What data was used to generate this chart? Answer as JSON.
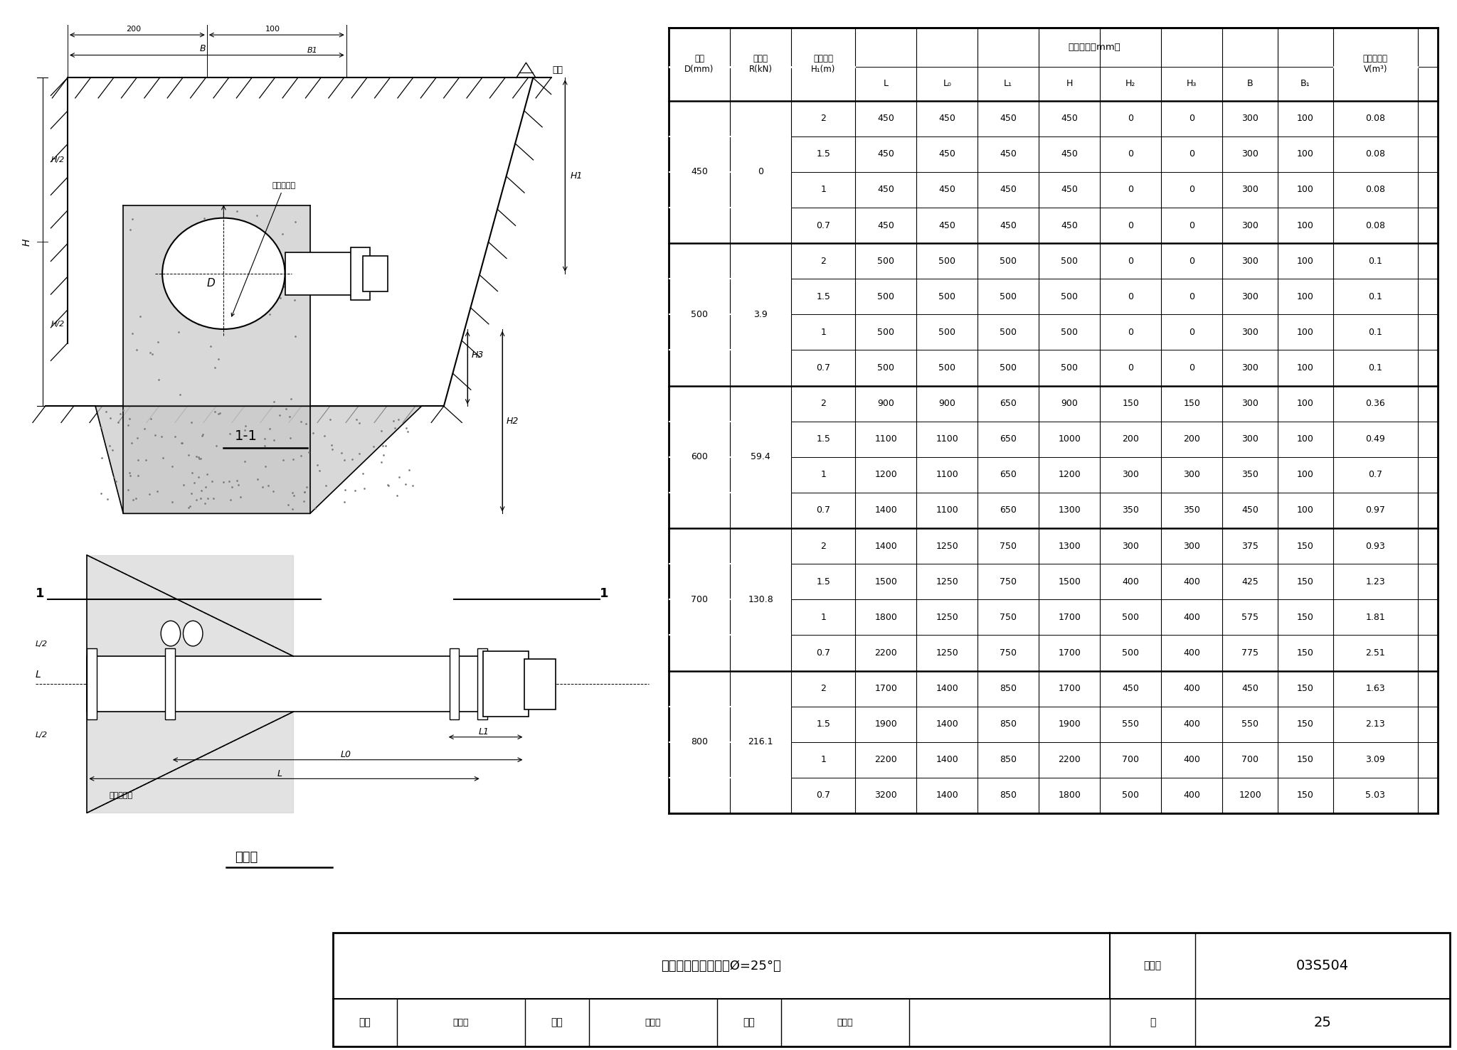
{
  "title": "水平三通管支墩图（Ø=25°）",
  "fig_num": "03S504",
  "page": "25",
  "table_data": [
    [
      "450",
      "0",
      "2",
      "450",
      "450",
      "450",
      "450",
      "0",
      "0",
      "300",
      "100",
      "0.08"
    ],
    [
      "",
      "",
      "1.5",
      "450",
      "450",
      "450",
      "450",
      "0",
      "0",
      "300",
      "100",
      "0.08"
    ],
    [
      "",
      "",
      "1",
      "450",
      "450",
      "450",
      "450",
      "0",
      "0",
      "300",
      "100",
      "0.08"
    ],
    [
      "",
      "",
      "0.7",
      "450",
      "450",
      "450",
      "450",
      "0",
      "0",
      "300",
      "100",
      "0.08"
    ],
    [
      "500",
      "3.9",
      "2",
      "500",
      "500",
      "500",
      "500",
      "0",
      "0",
      "300",
      "100",
      "0.1"
    ],
    [
      "",
      "",
      "1.5",
      "500",
      "500",
      "500",
      "500",
      "0",
      "0",
      "300",
      "100",
      "0.1"
    ],
    [
      "",
      "",
      "1",
      "500",
      "500",
      "500",
      "500",
      "0",
      "0",
      "300",
      "100",
      "0.1"
    ],
    [
      "",
      "",
      "0.7",
      "500",
      "500",
      "500",
      "500",
      "0",
      "0",
      "300",
      "100",
      "0.1"
    ],
    [
      "600",
      "59.4",
      "2",
      "900",
      "900",
      "650",
      "900",
      "150",
      "150",
      "300",
      "100",
      "0.36"
    ],
    [
      "",
      "",
      "1.5",
      "1100",
      "1100",
      "650",
      "1000",
      "200",
      "200",
      "300",
      "100",
      "0.49"
    ],
    [
      "",
      "",
      "1",
      "1200",
      "1100",
      "650",
      "1200",
      "300",
      "300",
      "350",
      "100",
      "0.7"
    ],
    [
      "",
      "",
      "0.7",
      "1400",
      "1100",
      "650",
      "1300",
      "350",
      "350",
      "450",
      "100",
      "0.97"
    ],
    [
      "700",
      "130.8",
      "2",
      "1400",
      "1250",
      "750",
      "1300",
      "300",
      "300",
      "375",
      "150",
      "0.93"
    ],
    [
      "",
      "",
      "1.5",
      "1500",
      "1250",
      "750",
      "1500",
      "400",
      "400",
      "425",
      "150",
      "1.23"
    ],
    [
      "",
      "",
      "1",
      "1800",
      "1250",
      "750",
      "1700",
      "500",
      "400",
      "575",
      "150",
      "1.81"
    ],
    [
      "",
      "",
      "0.7",
      "2200",
      "1250",
      "750",
      "1700",
      "500",
      "400",
      "775",
      "150",
      "2.51"
    ],
    [
      "800",
      "216.1",
      "2",
      "1700",
      "1400",
      "850",
      "1700",
      "450",
      "400",
      "450",
      "150",
      "1.63"
    ],
    [
      "",
      "",
      "1.5",
      "1900",
      "1400",
      "850",
      "1900",
      "550",
      "400",
      "550",
      "150",
      "2.13"
    ],
    [
      "",
      "",
      "1",
      "2200",
      "1400",
      "850",
      "2200",
      "700",
      "400",
      "700",
      "150",
      "3.09"
    ],
    [
      "",
      "",
      "0.7",
      "3200",
      "1400",
      "850",
      "1800",
      "500",
      "400",
      "1200",
      "150",
      "5.03"
    ]
  ],
  "bg_color": "#ffffff",
  "line_color": "#000000"
}
